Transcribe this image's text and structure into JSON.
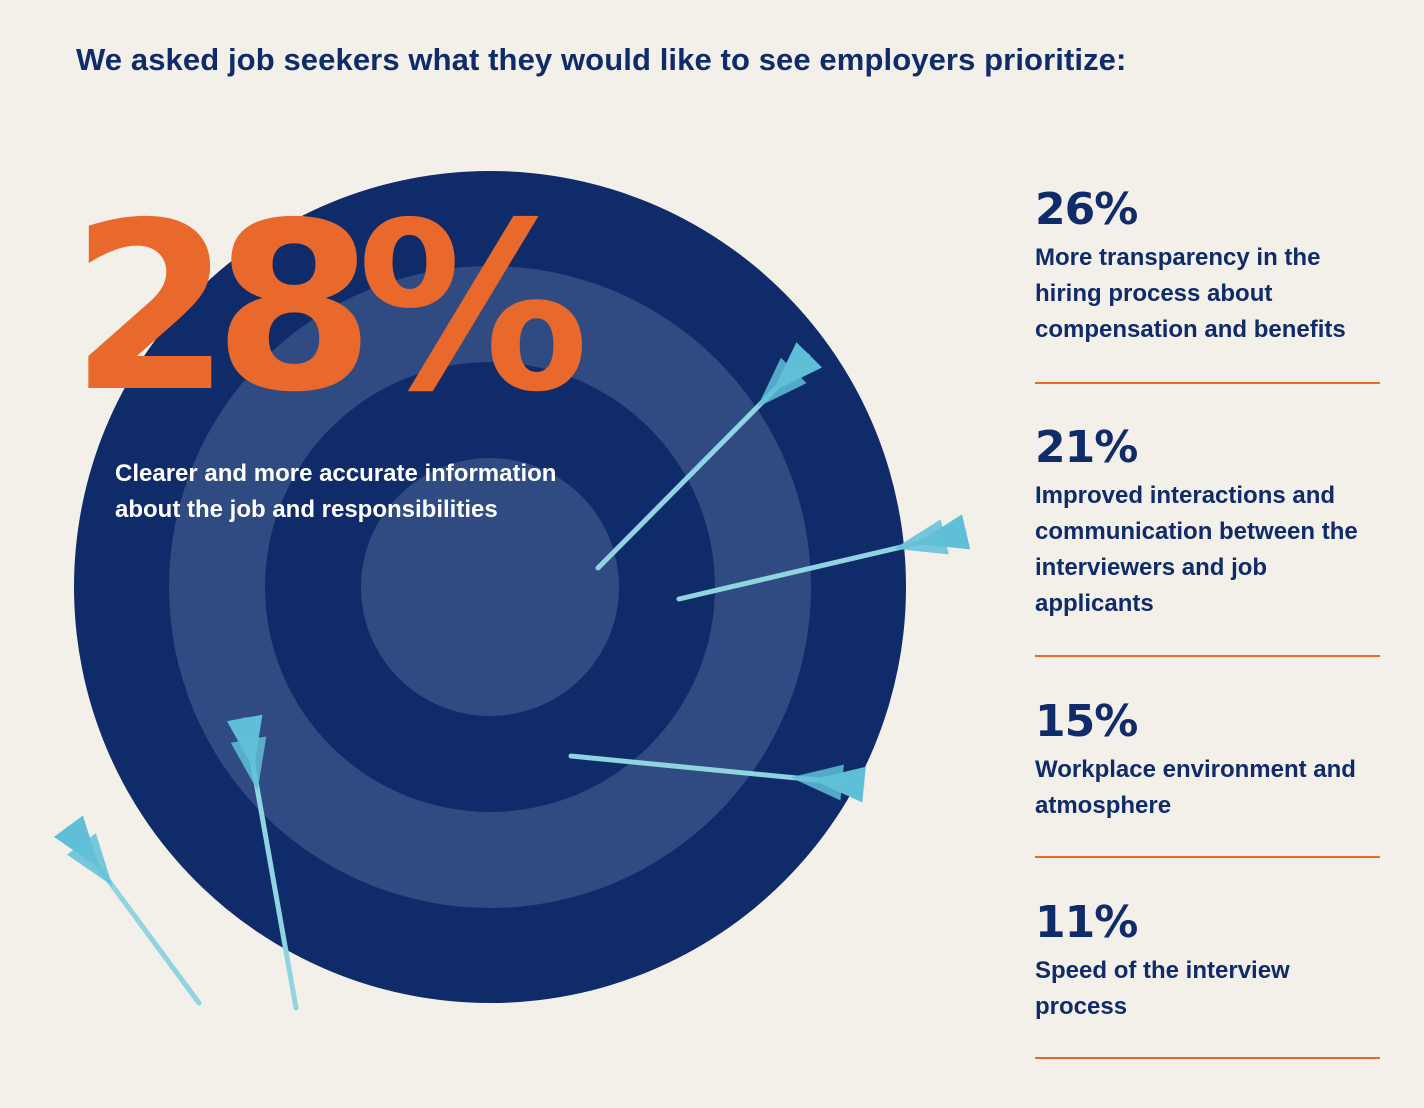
{
  "title": "We asked job seekers what they would like to see employers prioritize:",
  "colors": {
    "background": "#f3efe9",
    "navy": "#102b6a",
    "ring_light": "#2f4b82",
    "orange": "#e8692b",
    "arrow": "#8fd4e0",
    "fletching": "#5fbfd8"
  },
  "chart_data": {
    "type": "table",
    "items": [
      {
        "value": "28%",
        "percent": 28,
        "label": "Clearer and more accurate information about the job and responsibilities"
      },
      {
        "value": "26%",
        "percent": 26,
        "label": "More transparency in the hiring process about compensation and benefits"
      },
      {
        "value": "21%",
        "percent": 21,
        "label": "Improved interactions and communication between the interviewers and job applicants"
      },
      {
        "value": "15%",
        "percent": 15,
        "label": "Workplace environment and atmosphere"
      },
      {
        "value": "11%",
        "percent": 11,
        "label": "Speed of the interview process"
      }
    ]
  },
  "icons": {
    "target": "target-icon",
    "arrow": "arrow-icon"
  }
}
